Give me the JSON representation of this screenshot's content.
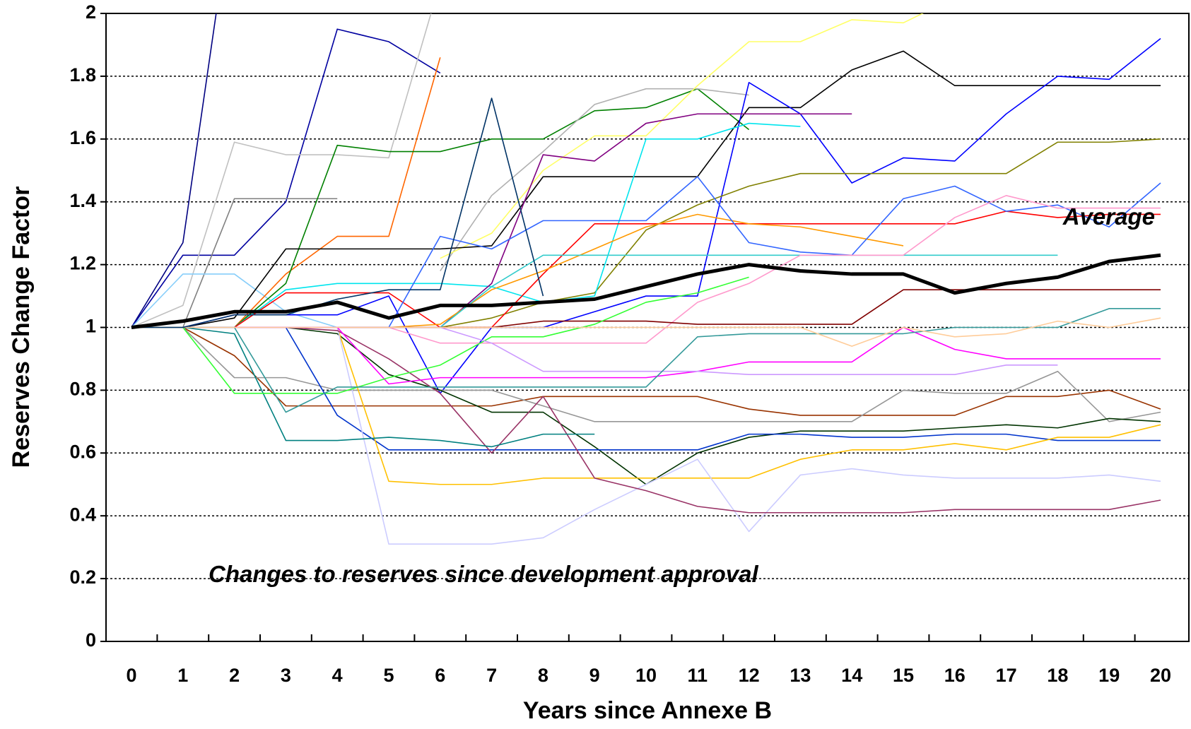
{
  "chart_data": {
    "type": "line",
    "x_label": "Years since Annexe B",
    "y_label": "Reserves Change Factor",
    "annotations": [
      "Changes to reserves since development approval"
    ],
    "categories": [
      "0",
      "1",
      "2",
      "3",
      "4",
      "5",
      "6",
      "7",
      "8",
      "9",
      "10",
      "11",
      "12",
      "13",
      "14",
      "15",
      "16",
      "17",
      "18",
      "19",
      "20"
    ],
    "ylim": [
      0,
      2
    ],
    "yticks": [
      0,
      0.2,
      0.4,
      0.6,
      0.8,
      1,
      1.2,
      1.4,
      1.6,
      1.8,
      2
    ],
    "grid": true,
    "series": [
      {
        "color": "#000080",
        "values": [
          1,
          1.27,
          2.4,
          null,
          null,
          null,
          null,
          null,
          null,
          null,
          null,
          null,
          null,
          null,
          null,
          null,
          null,
          null,
          null,
          null,
          null
        ]
      },
      {
        "color": "#0000a0",
        "values": [
          1,
          1.23,
          1.23,
          1.4,
          1.95,
          1.91,
          1.81,
          null,
          null,
          null,
          null,
          null,
          null,
          null,
          null,
          null,
          null,
          null,
          null,
          null,
          null
        ]
      },
      {
        "color": "#c0c0c0",
        "values": [
          1,
          1.07,
          1.59,
          1.55,
          1.55,
          1.54,
          2.1,
          null,
          null,
          null,
          null,
          null,
          null,
          null,
          null,
          null,
          null,
          null,
          null,
          null,
          null
        ]
      },
      {
        "color": "#808080",
        "values": [
          1,
          1.0,
          1.41,
          1.41,
          1.41,
          null,
          null,
          null,
          null,
          null,
          null,
          null,
          null,
          null,
          null,
          null,
          null,
          null,
          null,
          null,
          null
        ]
      },
      {
        "color": "#87cefa",
        "values": [
          1,
          1.17,
          1.17,
          1.05,
          1.0,
          null,
          null,
          null,
          null,
          null,
          null,
          null,
          null,
          null,
          null,
          null,
          null,
          null,
          null,
          null,
          null
        ]
      },
      {
        "color": "#ff6600",
        "values": [
          null,
          null,
          1,
          1.17,
          1.29,
          1.29,
          1.86,
          null,
          null,
          null,
          null,
          null,
          null,
          null,
          null,
          null,
          null,
          null,
          null,
          null,
          null
        ]
      },
      {
        "color": "#008000",
        "values": [
          null,
          null,
          1,
          1.14,
          1.58,
          1.56,
          1.56,
          1.6,
          1.6,
          1.69,
          1.7,
          1.76,
          1.63,
          null,
          null,
          null,
          null,
          null,
          null,
          null,
          null
        ]
      },
      {
        "color": "#b0b0b0",
        "values": [
          null,
          null,
          null,
          null,
          null,
          null,
          1.18,
          1.42,
          1.56,
          1.71,
          1.76,
          1.76,
          1.74,
          null,
          null,
          null,
          null,
          null,
          null,
          null,
          null
        ]
      },
      {
        "color": "#ffff66",
        "values": [
          null,
          null,
          null,
          null,
          null,
          null,
          1.22,
          1.3,
          1.5,
          1.61,
          1.61,
          1.77,
          1.91,
          1.91,
          1.98,
          1.97,
          2.05,
          null,
          null,
          null,
          null
        ]
      },
      {
        "color": "#000000",
        "values": [
          1,
          1,
          1.03,
          1.25,
          1.25,
          1.25,
          1.25,
          1.26,
          1.48,
          1.48,
          1.48,
          1.48,
          1.7,
          1.7,
          1.82,
          1.88,
          1.77,
          1.77,
          1.77,
          1.77,
          1.77
        ]
      },
      {
        "color": "#0000ff",
        "values": [
          1,
          1,
          1.04,
          1.04,
          1.04,
          1.1,
          0.79,
          1.0,
          1.0,
          1.05,
          1.1,
          1.1,
          1.78,
          1.68,
          1.46,
          1.54,
          1.53,
          1.68,
          1.8,
          1.79,
          1.92
        ]
      },
      {
        "color": "#808000",
        "values": [
          1,
          1,
          1,
          1,
          1,
          1,
          1,
          1.03,
          1.08,
          1.11,
          1.31,
          1.39,
          1.45,
          1.49,
          1.49,
          1.49,
          1.49,
          1.49,
          1.59,
          1.59,
          1.6
        ]
      },
      {
        "color": "#00e5ee",
        "values": [
          1,
          1,
          1,
          1.12,
          1.14,
          1.14,
          1.14,
          1.13,
          1.08,
          1.1,
          1.6,
          1.6,
          1.65,
          1.64,
          null,
          null,
          null,
          null,
          null,
          null,
          null
        ]
      },
      {
        "color": "#800080",
        "values": [
          1,
          1,
          1,
          1,
          1,
          1,
          1,
          1.14,
          1.55,
          1.53,
          1.65,
          1.68,
          1.68,
          1.68,
          1.68,
          null,
          null,
          null,
          null,
          null,
          null
        ]
      },
      {
        "color": "#ff0000",
        "values": [
          1,
          1,
          1,
          1.11,
          1.11,
          1.11,
          1.0,
          1.0,
          1.17,
          1.33,
          1.33,
          1.33,
          1.33,
          1.33,
          1.33,
          1.33,
          1.33,
          1.37,
          1.35,
          1.36,
          1.36
        ]
      },
      {
        "color": "#ff9900",
        "values": [
          1,
          1,
          1,
          1,
          1,
          1,
          1.01,
          1.12,
          1.18,
          1.25,
          1.32,
          1.36,
          1.33,
          1.32,
          1.29,
          1.26,
          null,
          null,
          null,
          null,
          null
        ]
      },
      {
        "color": "#33cccc",
        "values": [
          1,
          1,
          1,
          1,
          1,
          1,
          1,
          1.13,
          1.23,
          1.23,
          1.23,
          1.23,
          1.23,
          1.23,
          1.23,
          1.23,
          1.23,
          1.23,
          1.23,
          null,
          null
        ]
      },
      {
        "color": "#3366ff",
        "values": [
          1,
          1,
          1,
          1,
          1,
          1,
          1.29,
          1.25,
          1.34,
          1.34,
          1.34,
          1.48,
          1.27,
          1.24,
          1.23,
          1.41,
          1.45,
          1.37,
          1.39,
          1.32,
          1.46
        ]
      },
      {
        "color": "#ff99cc",
        "values": [
          1,
          1,
          1,
          1,
          1,
          1,
          0.95,
          0.95,
          0.95,
          0.95,
          0.95,
          1.08,
          1.14,
          1.23,
          1.23,
          1.23,
          1.35,
          1.42,
          1.38,
          1.38,
          1.38
        ]
      },
      {
        "color": "#800000",
        "values": [
          1,
          1,
          1,
          1,
          1,
          1,
          1,
          1,
          1.02,
          1.02,
          1.02,
          1.01,
          1.01,
          1.01,
          1.01,
          1.12,
          1.12,
          1.12,
          1.12,
          1.12,
          1.12
        ]
      },
      {
        "color": "#993300",
        "values": [
          1,
          1,
          0.91,
          0.75,
          0.75,
          0.75,
          0.75,
          0.75,
          0.78,
          0.78,
          0.78,
          0.78,
          0.74,
          0.72,
          0.72,
          0.72,
          0.72,
          0.78,
          0.78,
          0.8,
          0.74
        ]
      },
      {
        "color": "#969696",
        "values": [
          1,
          1,
          0.84,
          0.84,
          0.8,
          0.8,
          0.8,
          0.8,
          0.75,
          0.7,
          0.7,
          0.7,
          0.7,
          0.7,
          0.7,
          0.8,
          0.79,
          0.79,
          0.86,
          0.7,
          0.73
        ]
      },
      {
        "color": "#003300",
        "values": [
          1,
          1,
          1,
          1,
          0.98,
          0.85,
          0.8,
          0.73,
          0.73,
          0.62,
          0.5,
          0.6,
          0.65,
          0.67,
          0.67,
          0.67,
          0.68,
          0.69,
          0.68,
          0.71,
          0.7
        ]
      },
      {
        "color": "#0033cc",
        "values": [
          1,
          1,
          1,
          1,
          0.72,
          0.61,
          0.61,
          0.61,
          0.61,
          0.61,
          0.61,
          0.61,
          0.66,
          0.66,
          0.65,
          0.65,
          0.66,
          0.66,
          0.64,
          0.64,
          0.64
        ]
      },
      {
        "color": "#ffc000",
        "values": [
          1,
          1,
          1,
          1,
          1,
          0.51,
          0.5,
          0.5,
          0.52,
          0.52,
          0.52,
          0.52,
          0.52,
          0.58,
          0.61,
          0.61,
          0.63,
          0.61,
          0.65,
          0.65,
          0.69
        ]
      },
      {
        "color": "#ccccff",
        "values": [
          1,
          1,
          1,
          1,
          1,
          0.31,
          0.31,
          0.31,
          0.33,
          0.42,
          0.5,
          0.58,
          0.35,
          0.53,
          0.55,
          0.53,
          0.52,
          0.52,
          0.52,
          0.53,
          0.51
        ]
      },
      {
        "color": "#993366",
        "values": [
          1,
          1,
          1,
          1,
          0.99,
          0.9,
          0.79,
          0.6,
          0.78,
          0.52,
          0.48,
          0.43,
          0.41,
          0.41,
          0.41,
          0.41,
          0.42,
          0.42,
          0.42,
          0.42,
          0.45
        ]
      },
      {
        "color": "#ff00ff",
        "values": [
          1,
          1,
          1,
          1,
          1,
          0.82,
          0.84,
          0.84,
          0.84,
          0.84,
          0.84,
          0.86,
          0.89,
          0.89,
          0.89,
          1.0,
          0.93,
          0.9,
          0.9,
          0.9,
          0.9
        ]
      },
      {
        "color": "#008080",
        "values": [
          1,
          1,
          0.98,
          0.64,
          0.64,
          0.65,
          0.64,
          0.62,
          0.66,
          0.66,
          null,
          null,
          null,
          null,
          null,
          null,
          null,
          null,
          null,
          null,
          null
        ]
      },
      {
        "color": "#33ff33",
        "values": [
          1,
          1,
          0.79,
          0.79,
          0.79,
          0.84,
          0.88,
          0.97,
          0.97,
          1.01,
          1.08,
          1.11,
          1.16,
          null,
          null,
          null,
          null,
          null,
          null,
          null,
          null
        ]
      },
      {
        "color": "#cc99ff",
        "values": [
          1,
          1,
          1,
          1,
          1,
          1,
          1,
          0.95,
          0.86,
          0.86,
          0.86,
          0.86,
          0.85,
          0.85,
          0.85,
          0.85,
          0.85,
          0.88,
          0.88,
          null,
          null
        ]
      },
      {
        "color": "#339999",
        "values": [
          1,
          1,
          1,
          0.73,
          0.81,
          0.81,
          0.81,
          0.81,
          0.81,
          0.81,
          0.81,
          0.97,
          0.98,
          0.98,
          0.98,
          0.98,
          1.0,
          1.0,
          1.0,
          1.06,
          1.06
        ]
      },
      {
        "color": "#ffcc99",
        "values": [
          1,
          1,
          1,
          1,
          1,
          1,
          1,
          1,
          1,
          1,
          1,
          1,
          1,
          1,
          0.94,
          1.0,
          0.97,
          0.98,
          1.02,
          1.0,
          1.03
        ]
      },
      {
        "color": "#003366",
        "values": [
          1,
          1,
          1.04,
          1.04,
          1.09,
          1.12,
          1.12,
          1.73,
          1.1,
          null,
          null,
          null,
          null,
          null,
          null,
          null,
          null,
          null,
          null,
          null,
          null
        ]
      },
      {
        "name": "Average",
        "color": "#000000",
        "values": [
          1,
          1.02,
          1.05,
          1.05,
          1.08,
          1.03,
          1.07,
          1.07,
          1.08,
          1.09,
          1.13,
          1.17,
          1.2,
          1.18,
          1.17,
          1.17,
          1.11,
          1.14,
          1.16,
          1.21,
          1.23
        ]
      }
    ]
  }
}
